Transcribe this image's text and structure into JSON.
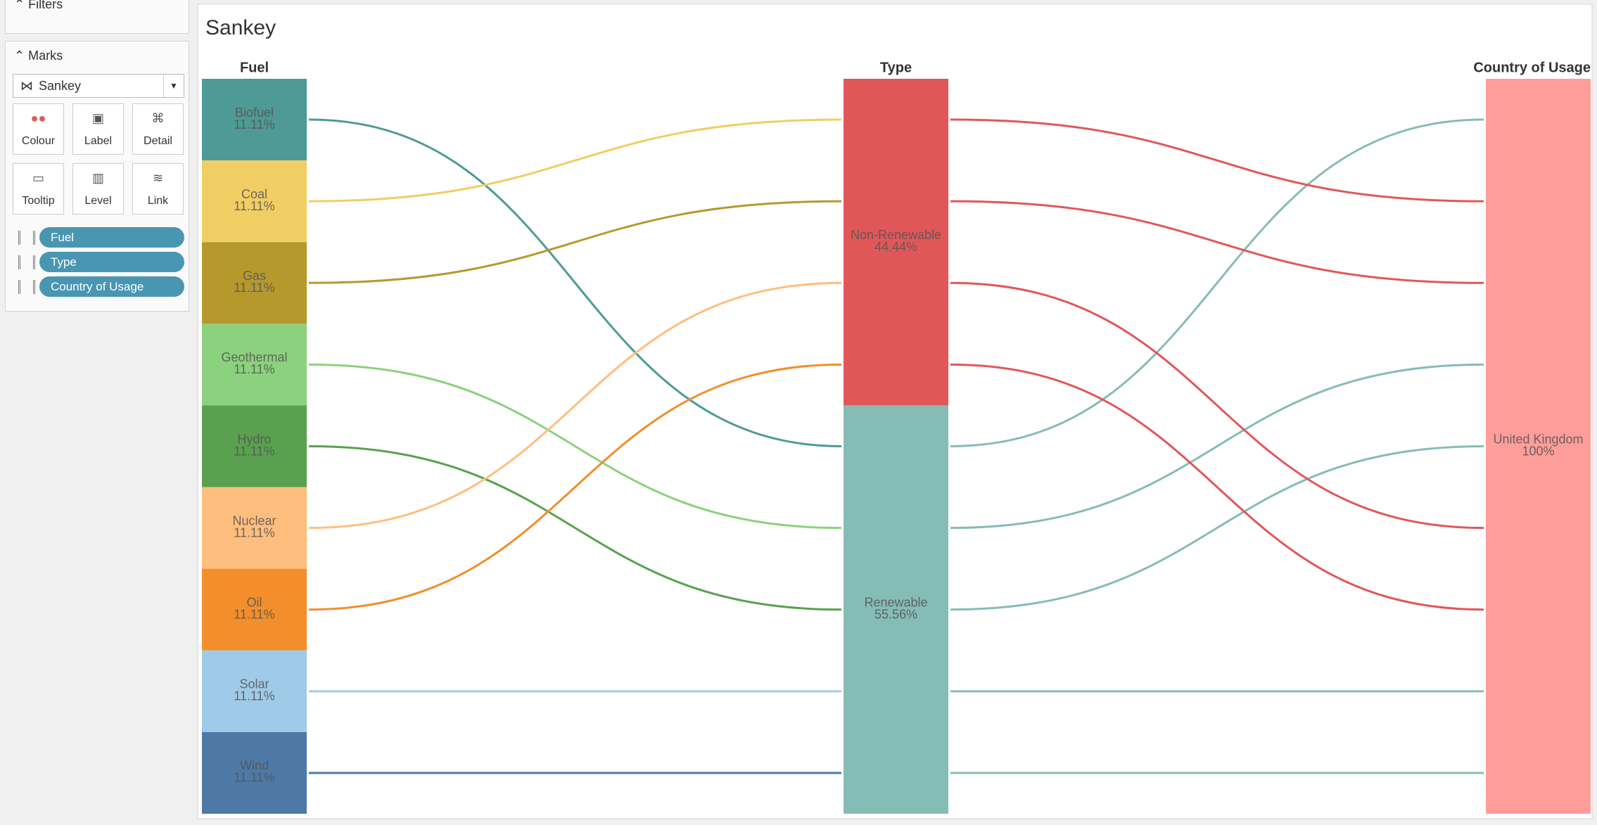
{
  "sidebar": {
    "filters": "Filters",
    "marks": "Marks",
    "mark_type": "Sankey",
    "buttons": [
      "Colour",
      "Label",
      "Detail",
      "Tooltip",
      "Level",
      "Link"
    ],
    "pills": [
      "Fuel",
      "Type",
      "Country of Usage"
    ]
  },
  "chart_data": {
    "type": "sankey",
    "title": "Sankey",
    "levels": [
      {
        "name": "Fuel",
        "nodes": [
          {
            "name": "Biofuel",
            "value": 11.11,
            "value_label": "11.11%",
            "color": "#4e9a96"
          },
          {
            "name": "Coal",
            "value": 11.11,
            "value_label": "11.11%",
            "color": "#f1ce63"
          },
          {
            "name": "Gas",
            "value": 11.11,
            "value_label": "11.11%",
            "color": "#b6992d"
          },
          {
            "name": "Geothermal",
            "value": 11.11,
            "value_label": "11.11%",
            "color": "#8cd17d"
          },
          {
            "name": "Hydro",
            "value": 11.11,
            "value_label": "11.11%",
            "color": "#59a14f"
          },
          {
            "name": "Nuclear",
            "value": 11.11,
            "value_label": "11.11%",
            "color": "#ffbe7d"
          },
          {
            "name": "Oil",
            "value": 11.11,
            "value_label": "11.11%",
            "color": "#f28e2b"
          },
          {
            "name": "Solar",
            "value": 11.11,
            "value_label": "11.11%",
            "color": "#a0cbe8"
          },
          {
            "name": "Wind",
            "value": 11.11,
            "value_label": "11.11%",
            "color": "#4e79a7"
          }
        ]
      },
      {
        "name": "Type",
        "nodes": [
          {
            "name": "Non-Renewable",
            "value": 44.44,
            "value_label": "44.44%",
            "color": "#e15759"
          },
          {
            "name": "Renewable",
            "value": 55.56,
            "value_label": "55.56%",
            "color": "#86bcb6"
          }
        ]
      },
      {
        "name": "Country of Usage",
        "nodes": [
          {
            "name": "United Kingdom",
            "value": 100,
            "value_label": "100%",
            "color": "#ff9d9a"
          }
        ]
      }
    ],
    "rows": [
      [
        "Biofuel",
        "Renewable",
        "United Kingdom"
      ],
      [
        "Coal",
        "Non-Renewable",
        "United Kingdom"
      ],
      [
        "Gas",
        "Non-Renewable",
        "United Kingdom"
      ],
      [
        "Geothermal",
        "Renewable",
        "United Kingdom"
      ],
      [
        "Hydro",
        "Renewable",
        "United Kingdom"
      ],
      [
        "Nuclear",
        "Non-Renewable",
        "United Kingdom"
      ],
      [
        "Oil",
        "Non-Renewable",
        "United Kingdom"
      ],
      [
        "Solar",
        "Renewable",
        "United Kingdom"
      ],
      [
        "Wind",
        "Renewable",
        "United Kingdom"
      ]
    ]
  }
}
